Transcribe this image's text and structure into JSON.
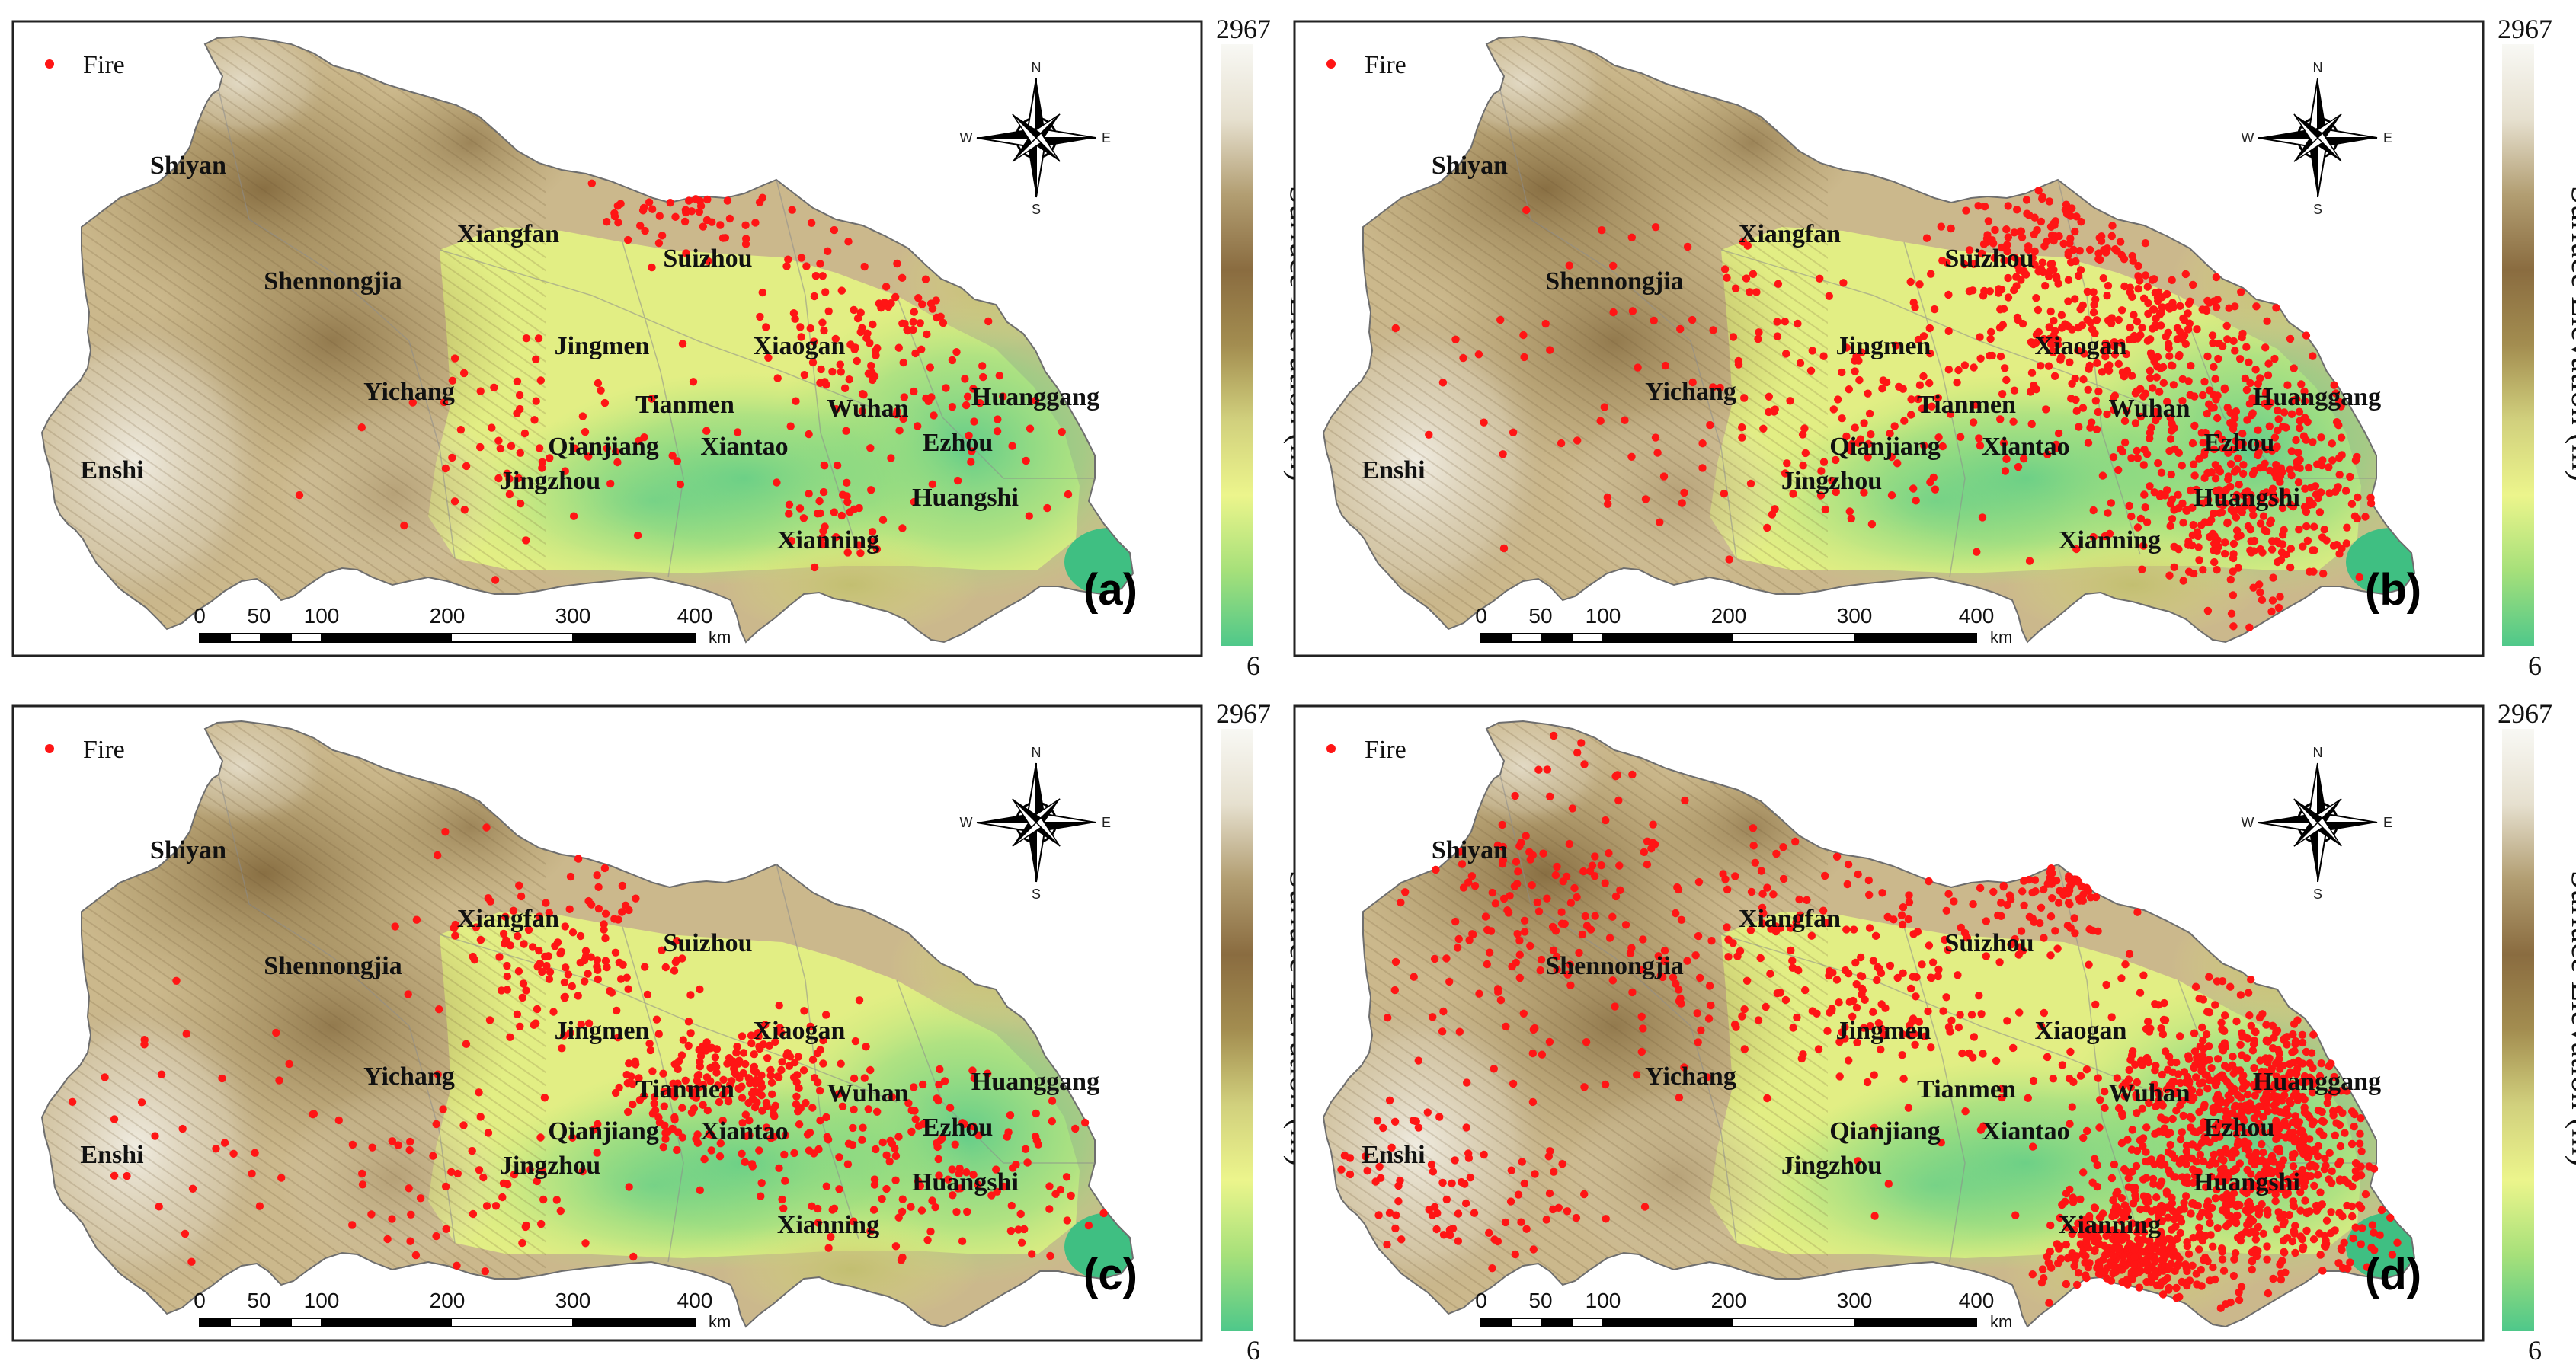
{
  "legend": {
    "fire_label": "Fire"
  },
  "compass": {
    "n": "N",
    "s": "S",
    "e": "E",
    "w": "W"
  },
  "colorbar": {
    "max_label": "2967",
    "min_label": "6",
    "title": "Surface Elevation (m)",
    "colors": [
      "#f8f8f4",
      "#e6e0cf",
      "#b29e72",
      "#8a6c40",
      "#a38d50",
      "#d1d07d",
      "#ecf58c",
      "#a6e07a",
      "#4fc88a"
    ]
  },
  "scalebar": {
    "ticks": [
      "0",
      "50",
      "100",
      "200",
      "300",
      "400"
    ],
    "unit": "km"
  },
  "colors": {
    "fire": "#ff1515",
    "frame": "#222222",
    "low": "#4fc88a",
    "mid": "#e9f47f",
    "high": "#8b6b3f",
    "peak": "#f7f5ef"
  },
  "cities": [
    "Shiyan",
    "Xiangfan",
    "Suizhou",
    "Shennongjia",
    "Jingmen",
    "Xiaogan",
    "Yichang",
    "Tianmen",
    "Wuhan",
    "Huanggang",
    "Qianjiang",
    "Xiantao",
    "Ezhou",
    "Enshi",
    "Jingzhou",
    "Huangshi",
    "Xianning"
  ],
  "panels": [
    {
      "label": "(a)",
      "fire_count": 300,
      "seed": 11,
      "dist": "a"
    },
    {
      "label": "(b)",
      "fire_count": 1000,
      "seed": 23,
      "dist": "b"
    },
    {
      "label": "(c)",
      "fire_count": 600,
      "seed": 37,
      "dist": "c"
    },
    {
      "label": "(d)",
      "fire_count": 1800,
      "seed": 41,
      "dist": "d"
    }
  ]
}
